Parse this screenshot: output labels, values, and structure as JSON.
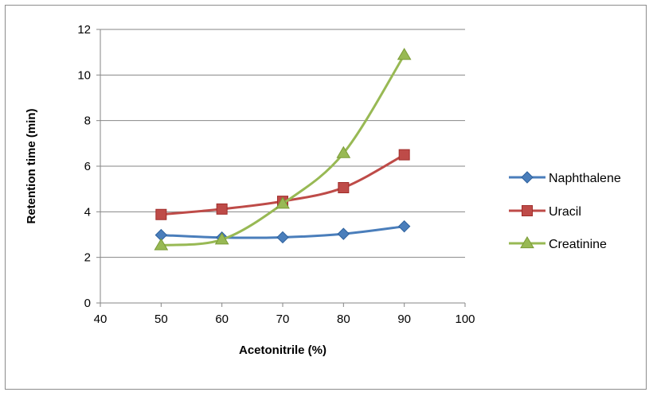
{
  "chart_data": {
    "type": "line",
    "title": "",
    "xlabel": "Acetonitrile (%)",
    "ylabel": "Retention time (min)",
    "xlim": [
      40,
      100
    ],
    "ylim": [
      0,
      12
    ],
    "x_ticks": [
      40,
      50,
      60,
      70,
      80,
      90,
      100
    ],
    "y_ticks": [
      0,
      2,
      4,
      6,
      8,
      10,
      12
    ],
    "grid": "horizontal",
    "legend": "right",
    "smooth": true,
    "x": [
      50,
      60,
      70,
      80,
      90
    ],
    "series": [
      {
        "name": "Naphthalene",
        "values": [
          2.98,
          2.87,
          2.88,
          3.03,
          3.36
        ],
        "color": "#4a7ebb",
        "marker": "diamond"
      },
      {
        "name": "Uracil",
        "values": [
          3.88,
          4.12,
          4.46,
          5.06,
          6.5
        ],
        "color": "#be4b48",
        "marker": "square"
      },
      {
        "name": "Creatinine",
        "values": [
          2.53,
          2.78,
          4.35,
          6.57,
          10.88
        ],
        "color": "#98b954",
        "marker": "triangle"
      }
    ]
  }
}
